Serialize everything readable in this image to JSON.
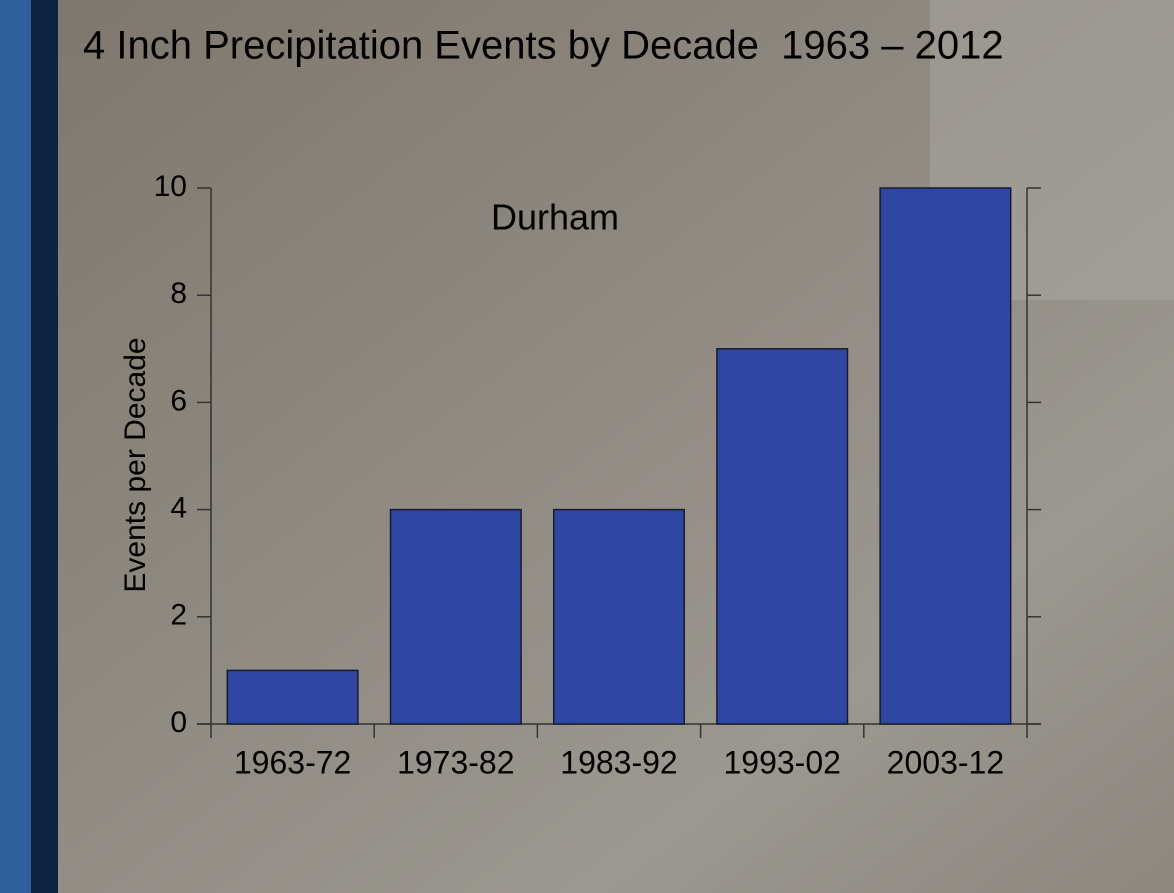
{
  "chart_data": {
    "type": "bar",
    "title": "4 Inch Precipitation Events by Decade  1963 – 2012",
    "annotation": "Durham",
    "y_label": "Events per Decade",
    "categories": [
      "1963-72",
      "1973-82",
      "1983-92",
      "1993-02",
      "2003-12"
    ],
    "values": [
      1,
      4,
      4,
      7,
      10
    ],
    "color": "#2f47a3",
    "ylim": [
      0,
      10
    ],
    "yticks": [
      0,
      2,
      4,
      6,
      8,
      10
    ],
    "grid": false
  }
}
